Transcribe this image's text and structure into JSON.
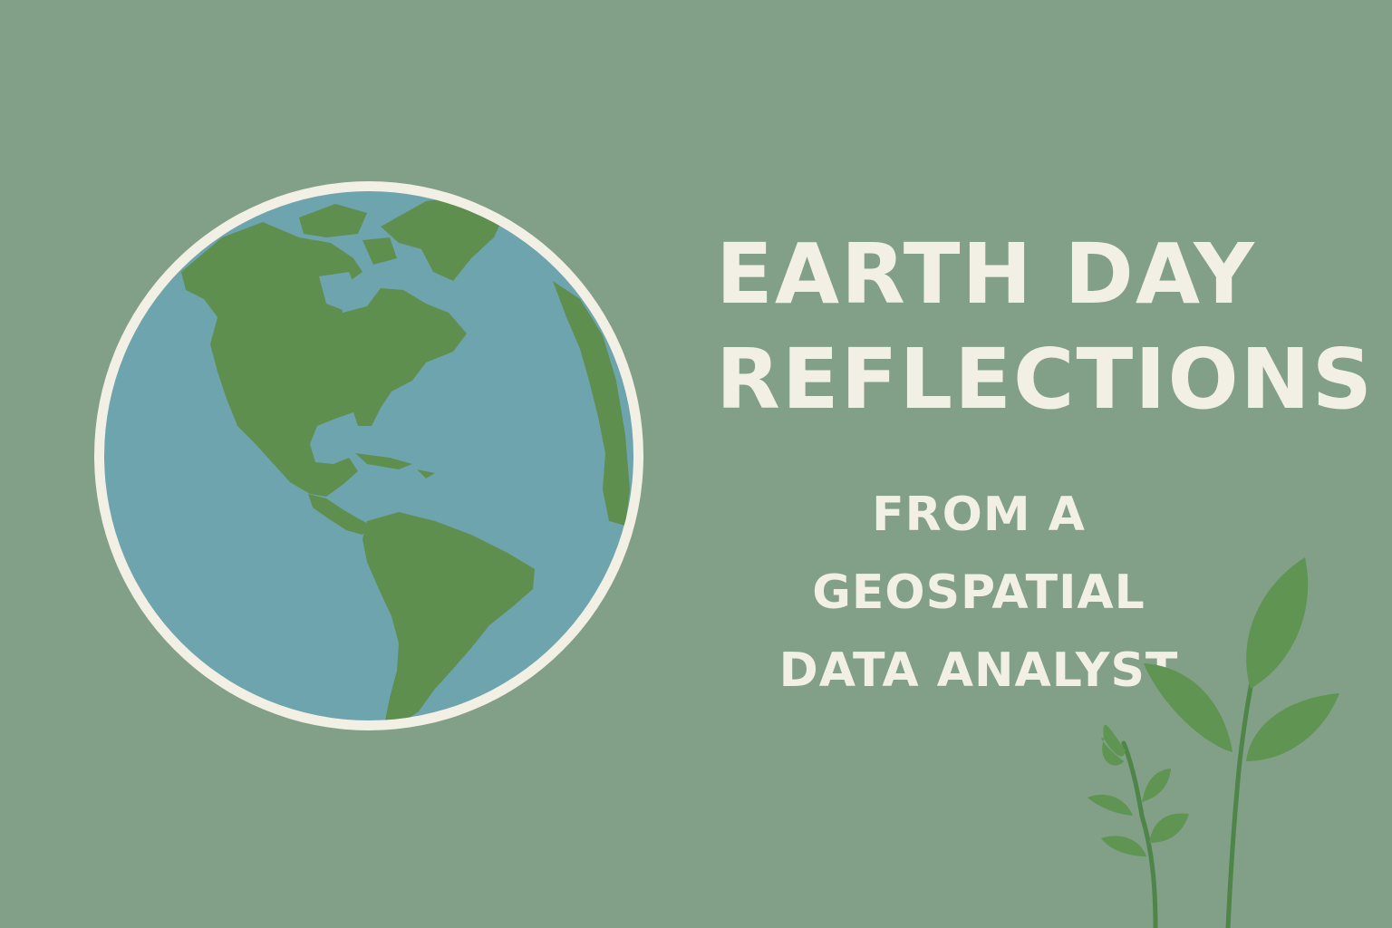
{
  "title": {
    "line1": "EARTH DAY",
    "line2": "REFLECTIONS"
  },
  "subtitle": {
    "line1": "FROM A GEOSPATIAL",
    "line2": "DATA ANALYST"
  },
  "colors": {
    "background": "#82a087",
    "text": "#f2f0e4",
    "ocean": "#6ea4ae",
    "land": "#5f8f4e",
    "globe_ring": "#f2f0e4",
    "leaf": "#5f9452",
    "stem": "#4f8548"
  },
  "icons": {
    "globe": "earth-americas-icon",
    "plant": "sprout-icon"
  }
}
